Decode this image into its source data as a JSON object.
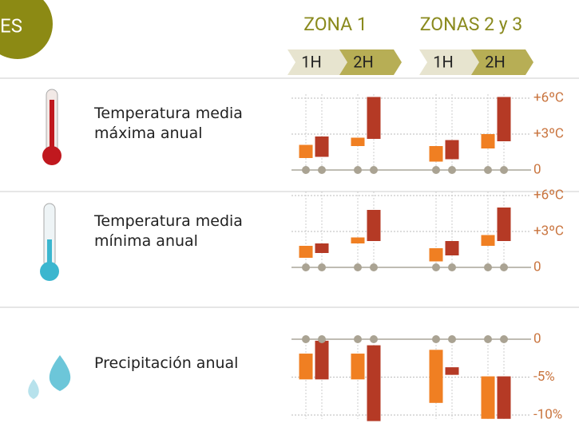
{
  "header": {
    "badge": "ES",
    "zones": [
      {
        "name": "ZONA 1",
        "periods": [
          "1H",
          "2H"
        ]
      },
      {
        "name": "ZONAS 2 y 3",
        "periods": [
          "1H",
          "2H"
        ]
      }
    ]
  },
  "chart_data": [
    {
      "type": "range-bar",
      "title": "Temperatura media máxima anual",
      "ylim": [
        0,
        6
      ],
      "yticks": [
        {
          "value": 0,
          "label": "0"
        },
        {
          "value": 3,
          "label": "+3ºC"
        },
        {
          "value": 6,
          "label": "+6ºC"
        }
      ],
      "grid": true,
      "series": [
        {
          "color": "#f07f22",
          "values": [
            [
              1.0,
              2.1
            ],
            [
              2.0,
              2.7
            ],
            [
              0.7,
              2.0
            ],
            [
              1.8,
              3.0
            ]
          ]
        },
        {
          "color": "#b53a25",
          "values": [
            [
              1.1,
              2.8
            ],
            [
              2.6,
              6.1
            ],
            [
              0.9,
              2.5
            ],
            [
              2.4,
              6.1
            ]
          ]
        }
      ]
    },
    {
      "type": "range-bar",
      "title": "Temperatura media mínima anual",
      "ylim": [
        0,
        6
      ],
      "yticks": [
        {
          "value": 0,
          "label": "0"
        },
        {
          "value": 3,
          "label": "+3ºC"
        },
        {
          "value": 6,
          "label": "+6ºC"
        }
      ],
      "grid": true,
      "series": [
        {
          "color": "#f07f22",
          "values": [
            [
              0.8,
              1.8
            ],
            [
              2.0,
              2.5
            ],
            [
              0.5,
              1.6
            ],
            [
              1.8,
              2.7
            ]
          ]
        },
        {
          "color": "#b53a25",
          "values": [
            [
              1.2,
              2.0
            ],
            [
              2.2,
              4.8
            ],
            [
              1.0,
              2.2
            ],
            [
              2.2,
              5.0
            ]
          ]
        }
      ]
    },
    {
      "type": "range-bar",
      "title": "Precipitación anual",
      "ylim": [
        -11,
        0
      ],
      "yticks": [
        {
          "value": 0,
          "label": "0"
        },
        {
          "value": -5,
          "label": "-5%"
        },
        {
          "value": -10,
          "label": "-10%"
        }
      ],
      "grid": true,
      "series": [
        {
          "color": "#f07f22",
          "values": [
            [
              -5.3,
              -1.9
            ],
            [
              -5.3,
              -1.9
            ],
            [
              -8.4,
              -1.4
            ],
            [
              -10.5,
              -4.9
            ]
          ]
        },
        {
          "color": "#b53a25",
          "values": [
            [
              -5.3,
              -0.2
            ],
            [
              -10.8,
              -0.8
            ],
            [
              -4.7,
              -3.7
            ],
            [
              -10.5,
              -4.9
            ]
          ]
        }
      ]
    }
  ]
}
